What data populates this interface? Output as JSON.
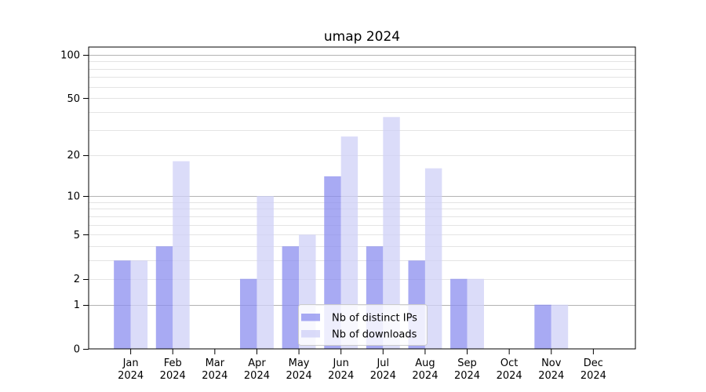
{
  "figure": {
    "background": "#ffffff"
  },
  "chart_data": {
    "type": "bar",
    "title": "umap 2024",
    "xlabel": "",
    "ylabel": "",
    "categories": [
      "Jan",
      "Feb",
      "Mar",
      "Apr",
      "May",
      "Jun",
      "Jul",
      "Aug",
      "Sep",
      "Oct",
      "Nov",
      "Dec"
    ],
    "year_label": "2024",
    "series": [
      {
        "name": "Nb of distinct IPs",
        "color": "#8b8eef",
        "opacity": 0.75,
        "values": [
          3,
          4,
          0,
          2,
          4,
          14,
          4,
          3,
          2,
          0,
          1,
          0
        ]
      },
      {
        "name": "Nb of downloads",
        "color": "#cfd0f7",
        "opacity": 0.75,
        "values": [
          3,
          18,
          0,
          10,
          5,
          27,
          37,
          16,
          2,
          0,
          1,
          0
        ]
      }
    ],
    "yscale": "log1p",
    "ylim": [
      0,
      113
    ],
    "ytick_values": [
      0,
      1,
      2,
      5,
      10,
      20,
      50,
      100
    ],
    "ytick_labels": [
      "0",
      "1",
      "2",
      "5",
      "10",
      "20",
      "50",
      "100"
    ],
    "major_grid_values": [
      1,
      10,
      100
    ],
    "minor_grid_values": [
      2,
      3,
      4,
      5,
      6,
      7,
      8,
      9,
      20,
      30,
      40,
      50,
      60,
      70,
      80,
      90
    ],
    "grid": true,
    "legend_position": "lower-center",
    "colors": {
      "major_grid": "#b3b3b3",
      "minor_grid": "#e4e4e4",
      "spine": "#000000",
      "legend_border": "#cccccc",
      "legend_background": "#ffffff",
      "text": "#000000"
    }
  }
}
